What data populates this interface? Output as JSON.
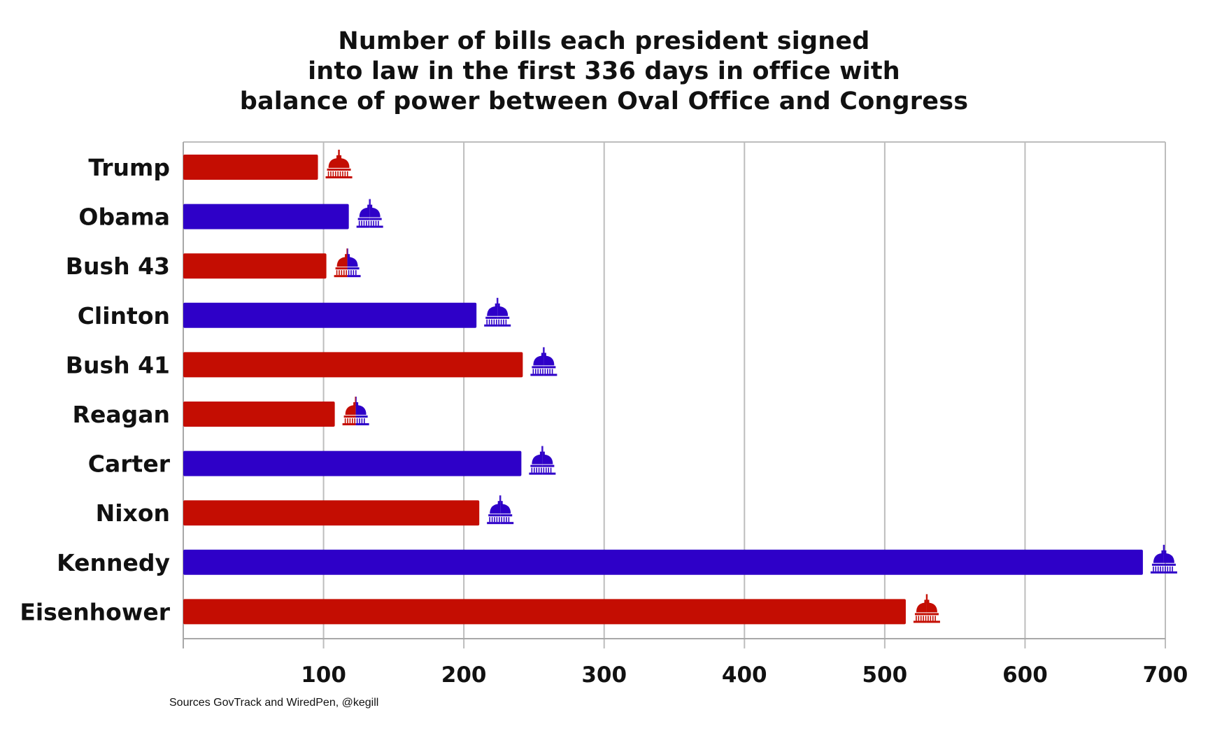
{
  "title_lines": [
    "Number of bills each president signed",
    "into law in the first 336 days in office with",
    "balance of power between Oval Office and Congress"
  ],
  "source_note": "Sources GovTrack and WiredPen, @kegill",
  "colors": {
    "republican": "#c40d02",
    "democrat": "#2e00c8",
    "grid": "#bdbdbd",
    "axis": "#a8a8a8"
  },
  "icon": "capitol-dome-icon",
  "chart_data": {
    "type": "bar",
    "orientation": "horizontal",
    "title": "Number of bills each president signed into law in the first 336 days in office with balance of power between Oval Office and Congress",
    "xlabel": "",
    "ylabel": "",
    "xlim": [
      0,
      700
    ],
    "xticks": [
      100,
      200,
      300,
      400,
      500,
      600,
      700
    ],
    "grid": "vertical",
    "categories": [
      "Trump",
      "Obama",
      "Bush 43",
      "Clinton",
      "Bush 41",
      "Reagan",
      "Carter",
      "Nixon",
      "Kennedy",
      "Eisenhower"
    ],
    "values": [
      96,
      118,
      102,
      209,
      242,
      108,
      241,
      211,
      684,
      515
    ],
    "president_party": [
      "republican",
      "democrat",
      "republican",
      "democrat",
      "republican",
      "republican",
      "democrat",
      "republican",
      "democrat",
      "republican"
    ],
    "congress_icon": [
      {
        "top": "republican",
        "bottom": "republican"
      },
      {
        "top": "democrat",
        "bottom": "democrat"
      },
      {
        "top": "republican",
        "bottom": "democrat"
      },
      {
        "top": "democrat",
        "bottom": "democrat"
      },
      {
        "top": "democrat",
        "bottom": "democrat"
      },
      {
        "top": "republican",
        "bottom": "democrat"
      },
      {
        "top": "democrat",
        "bottom": "democrat"
      },
      {
        "top": "democrat",
        "bottom": "democrat"
      },
      {
        "top": "democrat",
        "bottom": "democrat"
      },
      {
        "top": "republican",
        "bottom": "republican"
      }
    ]
  }
}
